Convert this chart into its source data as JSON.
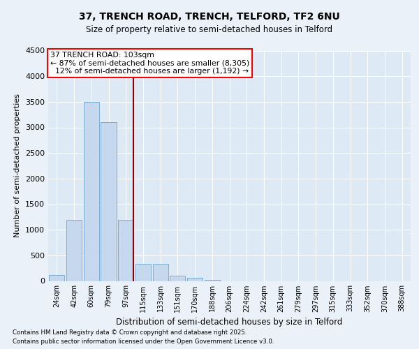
{
  "title1": "37, TRENCH ROAD, TRENCH, TELFORD, TF2 6NU",
  "title2": "Size of property relative to semi-detached houses in Telford",
  "xlabel": "Distribution of semi-detached houses by size in Telford",
  "ylabel": "Number of semi-detached properties",
  "categories": [
    "24sqm",
    "42sqm",
    "60sqm",
    "79sqm",
    "97sqm",
    "115sqm",
    "133sqm",
    "151sqm",
    "170sqm",
    "188sqm",
    "206sqm",
    "224sqm",
    "242sqm",
    "261sqm",
    "279sqm",
    "297sqm",
    "315sqm",
    "333sqm",
    "352sqm",
    "370sqm",
    "388sqm"
  ],
  "values": [
    120,
    1200,
    3500,
    3100,
    1200,
    330,
    330,
    100,
    55,
    25,
    0,
    0,
    0,
    0,
    0,
    0,
    0,
    0,
    0,
    0,
    0
  ],
  "bar_color": "#c5d8ed",
  "bar_edge_color": "#7bafd4",
  "red_line_x": 4.43,
  "annotation_text_line1": "37 TRENCH ROAD: 103sqm",
  "annotation_text_line2": "← 87% of semi-detached houses are smaller (8,305)",
  "annotation_text_line3": "  12% of semi-detached houses are larger (1,192) →",
  "ylim": [
    0,
    4500
  ],
  "yticks": [
    0,
    500,
    1000,
    1500,
    2000,
    2500,
    3000,
    3500,
    4000,
    4500
  ],
  "footer1": "Contains HM Land Registry data © Crown copyright and database right 2025.",
  "footer2": "Contains public sector information licensed under the Open Government Licence v3.0.",
  "bg_color": "#eaf1f8",
  "plot_bg_color": "#dde9f4",
  "grid_color": "#ffffff"
}
